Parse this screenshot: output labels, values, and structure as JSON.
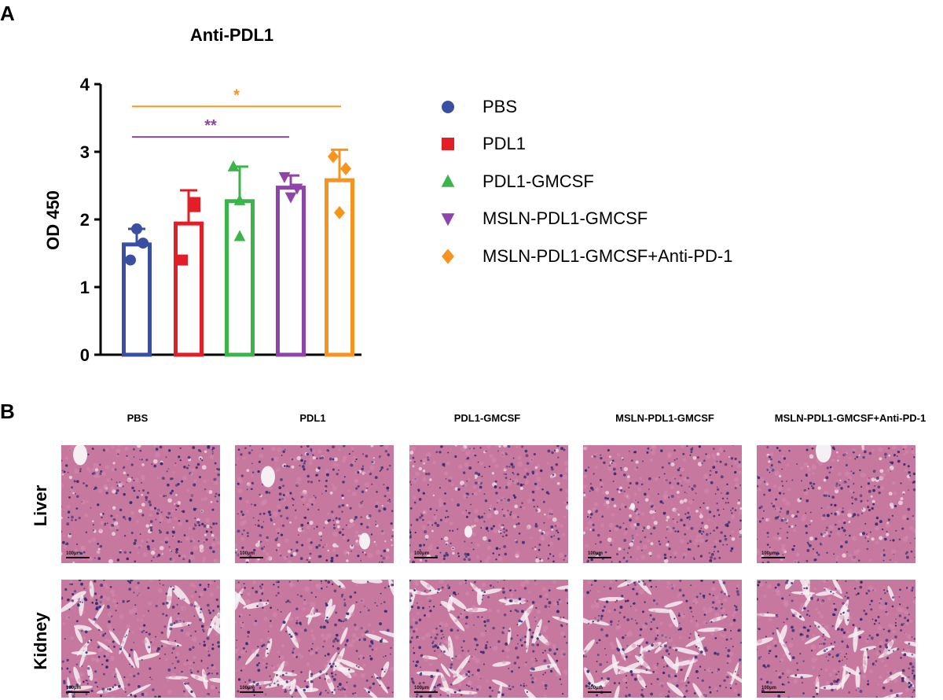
{
  "panels": {
    "a": "A",
    "b": "B"
  },
  "chart_data": {
    "type": "bar",
    "title": "Anti-PDL1",
    "ylabel": "OD 450",
    "xlabel": "",
    "ylim": [
      0,
      4
    ],
    "yticks": [
      "0",
      "1",
      "2",
      "3",
      "4"
    ],
    "grid": false,
    "legend_position": "right",
    "categories": [
      "PBS",
      "PDL1",
      "PDL1-GMCSF",
      "MSLN-PDL1-GMCSF",
      "MSLN-PDL1-GMCSF+Anti-PD-1"
    ],
    "markers": [
      "circle",
      "square",
      "triangle-up",
      "triangle-down",
      "diamond"
    ],
    "colors": [
      "#3a4fa0",
      "#e41e26",
      "#3bb54a",
      "#8e44a8",
      "#f7941d"
    ],
    "means": [
      1.63,
      1.94,
      2.27,
      2.47,
      2.58
    ],
    "error_upper": [
      1.86,
      2.43,
      2.78,
      2.65,
      3.03
    ],
    "error_lower": [
      1.4,
      1.45,
      1.76,
      2.29,
      2.13
    ],
    "points": [
      [
        1.86,
        1.65,
        1.4
      ],
      [
        2.25,
        2.19,
        1.4
      ],
      [
        2.78,
        2.28,
        1.75
      ],
      [
        2.63,
        2.46,
        2.33
      ],
      [
        2.93,
        2.75,
        2.1
      ]
    ],
    "significance": [
      {
        "from": 0,
        "to": 3,
        "label": "**",
        "y": 3.22,
        "color": "#8e44a8"
      },
      {
        "from": 0,
        "to": 4,
        "label": "*",
        "y": 3.67,
        "color": "#f7941d"
      }
    ]
  },
  "histology": {
    "columns": [
      "PBS",
      "PDL1",
      "PDL1-GMCSF",
      "MSLN-PDL1-GMCSF",
      "MSLN-PDL1-GMCSF+Anti-PD-1"
    ],
    "rows": [
      "Liver",
      "Kidney"
    ],
    "scale_bar_label": "100μm",
    "stain_colors": {
      "background": "#c7789f",
      "nuclei": "#2c2a6e",
      "cytoplasm": "#d58bb0",
      "lumen": "#f4f0f3"
    }
  }
}
